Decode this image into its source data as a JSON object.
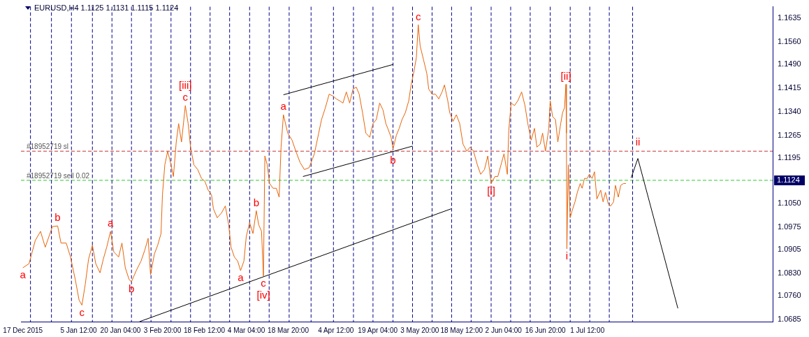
{
  "chart_data": {
    "type": "line",
    "title": "EURUSD,H4 1.1125 1.1131 1.1115 1.1124",
    "xlim": [
      "2015-12-16T08:00",
      "2016-09-04T08:00"
    ],
    "xticks": [
      {
        "value": "2015-12-17",
        "label": "17 Dec 2015"
      },
      {
        "value": "2016-01-05T12:00",
        "label": "5 Jan 12:00"
      },
      {
        "value": "2016-01-20T04:00",
        "label": "20 Jan 04:00"
      },
      {
        "value": "2016-02-03T20:00",
        "label": "3 Feb 20:00"
      },
      {
        "value": "2016-02-18T12:00",
        "label": "18 Feb 12:00"
      },
      {
        "value": "2016-03-04T04:00",
        "label": "4 Mar 04:00"
      },
      {
        "value": "2016-03-18T20:00",
        "label": "18 Mar 20:00"
      },
      {
        "value": "2016-04-04T12:00",
        "label": "4 Apr 12:00"
      },
      {
        "value": "2016-04-19T04:00",
        "label": "19 Apr 04:00"
      },
      {
        "value": "2016-05-03T20:00",
        "label": "3 May 20:00"
      },
      {
        "value": "2016-05-18T12:00",
        "label": "18 May 12:00"
      },
      {
        "value": "2016-06-02T04:00",
        "label": "2 Jun 04:00"
      },
      {
        "value": "2016-06-16T20:00",
        "label": "16 Jun 20:00"
      },
      {
        "value": "2016-07-01T12:00",
        "label": "1 Jul 12:00"
      }
    ],
    "ylim": [
      1.0678,
      1.1672
    ],
    "yticks": [
      1.0685,
      {
        "value": 1.076,
        "label": "1.0760"
      },
      {
        "value": 1.083,
        "label": "1.0830"
      },
      1.0905,
      1.0975,
      {
        "value": 1.105,
        "label": "1.1050"
      },
      1.1124,
      1.1195,
      1.1265,
      {
        "value": 1.134,
        "label": "1.1340"
      },
      1.1415,
      {
        "value": 1.149,
        "label": "1.1490"
      },
      {
        "value": 1.156,
        "label": "1.1560"
      },
      1.1635
    ],
    "grid": false,
    "marker": "none",
    "series": [
      {
        "x": [
          "2015-12-17T00:00",
          "2015-12-19T04:00",
          "2015-12-21T08:00",
          "2015-12-23T04:00",
          "2015-12-24T20:00",
          "2015-12-27T08:00",
          "2015-12-29T04:00",
          "2015-12-30T08:00",
          "2016-01-01T04:00",
          "2016-01-02T16:00",
          "2016-01-04T08:00",
          "2016-01-05T16:00",
          "2016-01-06T16:00",
          "2016-01-07T20:00",
          "2016-01-09T00:00",
          "2016-01-10T08:00",
          "2016-01-11T12:00",
          "2016-01-13T00:00",
          "2016-01-14T04:00",
          "2016-01-15T08:00",
          "2016-01-16T16:00",
          "2016-01-17T20:00",
          "2016-01-19T12:00",
          "2016-01-20T16:00",
          "2016-01-21T20:00",
          "2016-01-23T04:00",
          "2016-01-24T00:00",
          "2016-01-25T16:00",
          "2016-01-27T08:00",
          "2016-01-28T16:00",
          "2016-01-29T20:00",
          "2016-01-30T16:00",
          "2016-02-01T00:00",
          "2016-02-02T04:00",
          "2016-02-03T08:00",
          "2016-02-03T20:00",
          "2016-02-04T16:00",
          "2016-02-05T16:00",
          "2016-02-06T20:00",
          "2016-02-07T16:00",
          "2016-02-08T16:00",
          "2016-02-09T12:00",
          "2016-02-10T12:00",
          "2016-02-11T08:00",
          "2016-02-11T20:00",
          "2016-02-12T20:00",
          "2016-02-13T16:00",
          "2016-02-14T20:00",
          "2016-02-16T04:00",
          "2016-02-17T12:00",
          "2016-02-18T16:00",
          "2016-02-19T20:00",
          "2016-02-21T00:00",
          "2016-02-21T16:00",
          "2016-02-23T00:00",
          "2016-02-24T12:00",
          "2016-02-25T20:00",
          "2016-02-27T00:00",
          "2016-02-27T20:00",
          "2016-02-29T00:00",
          "2016-03-01T04:00",
          "2016-03-02T04:00",
          "2016-03-03T08:00",
          "2016-03-04T04:00",
          "2016-03-05T08:00",
          "2016-03-06T12:00",
          "2016-03-07T16:00",
          "2016-03-08T12:00",
          "2016-03-09T12:00",
          "2016-03-10T04:00",
          "2016-03-10T16:00",
          "2016-03-11T12:00",
          "2016-03-12T08:00",
          "2016-03-13T12:00",
          "2016-03-14T16:00",
          "2016-03-15T16:00",
          "2016-03-16T08:00",
          "2016-03-17T04:00",
          "2016-03-18T16:00",
          "2016-03-20T04:00",
          "2016-03-21T12:00",
          "2016-03-23T00:00",
          "2016-03-24T12:00",
          "2016-03-26T04:00",
          "2016-03-28T00:00",
          "2016-03-29T12:00",
          "2016-03-30T12:00",
          "2016-03-31T20:00",
          "2016-04-02T04:00",
          "2016-04-03T12:00",
          "2016-04-04T16:00",
          "2016-04-05T20:00",
          "2016-04-07T00:00",
          "2016-04-08T04:00",
          "2016-04-09T08:00",
          "2016-04-10T12:00",
          "2016-04-11T16:00",
          "2016-04-12T16:00",
          "2016-04-13T20:00",
          "2016-04-15T00:00",
          "2016-04-16T08:00",
          "2016-04-17T12:00",
          "2016-04-18T16:00",
          "2016-04-19T20:00",
          "2016-04-21T00:00",
          "2016-04-22T00:00",
          "2016-04-22T16:00",
          "2016-04-23T20:00",
          "2016-04-24T12:00",
          "2016-04-25T16:00",
          "2016-04-26T16:00",
          "2016-04-27T16:00",
          "2016-04-28T20:00",
          "2016-04-30T00:00",
          "2016-04-30T20:00",
          "2016-05-01T20:00",
          "2016-05-02T16:00",
          "2016-05-03T08:00",
          "2016-05-04T00:00",
          "2016-05-05T04:00",
          "2016-05-06T08:00",
          "2016-05-07T00:00",
          "2016-05-08T04:00",
          "2016-05-09T08:00",
          "2016-05-10T12:00",
          "2016-05-11T16:00",
          "2016-05-12T12:00",
          "2016-05-13T16:00",
          "2016-05-14T08:00",
          "2016-05-15T12:00",
          "2016-05-16T16:00",
          "2016-05-17T20:00",
          "2016-05-19T00:00",
          "2016-05-20T08:00",
          "2016-05-21T12:00",
          "2016-05-22T16:00",
          "2016-05-24T00:00",
          "2016-05-25T04:00",
          "2016-05-26T12:00",
          "2016-05-27T16:00",
          "2016-05-28T20:00",
          "2016-05-30T04:00",
          "2016-05-31T04:00",
          "2016-06-01T12:00",
          "2016-06-02T08:00",
          "2016-06-03T12:00",
          "2016-06-04T00:00",
          "2016-06-04T20:00",
          "2016-06-06T00:00",
          "2016-06-07T04:00",
          "2016-06-08T12:00",
          "2016-06-09T16:00",
          "2016-06-10T16:00",
          "2016-06-11T20:00",
          "2016-06-13T00:00",
          "2016-06-13T20:00",
          "2016-06-15T00:00",
          "2016-06-15T20:00",
          "2016-06-16T20:00",
          "2016-06-17T16:00",
          "2016-06-18T00:00",
          "2016-06-18T12:00",
          "2016-06-19T08:00",
          "2016-06-20T08:00",
          "2016-06-21T04:00",
          "2016-06-22T04:00",
          "2016-06-22T20:00",
          "2016-06-23T12:00",
          "2016-06-24T00:00",
          "2016-06-24T04:00",
          "2016-06-24T08:00",
          "2016-06-24T20:00",
          "2016-06-25T12:00",
          "2016-06-26T04:00",
          "2016-06-27T04:00",
          "2016-06-28T00:00",
          "2016-06-29T00:00",
          "2016-06-29T16:00",
          "2016-06-30T12:00",
          "2016-07-01T12:00",
          "2016-07-02T04:00",
          "2016-07-03T04:00",
          "2016-07-04T00:00",
          "2016-07-04T20:00",
          "2016-07-06T04:00",
          "2016-07-07T00:00",
          "2016-07-07T20:00",
          "2016-07-08T20:00",
          "2016-07-09T16:00",
          "2016-07-10T16:00",
          "2016-07-11T08:00",
          "2016-07-12T08:00",
          "2016-07-13T04:00",
          "2016-07-14T04:00",
          "2016-07-15T00:00"
        ],
        "values": [
          1.0848,
          1.0861,
          1.0934,
          1.0963,
          1.0913,
          1.0978,
          1.098,
          1.0926,
          1.0926,
          1.0882,
          1.0811,
          1.0746,
          1.073,
          1.0796,
          1.0876,
          1.0919,
          1.0861,
          1.0832,
          1.0876,
          1.0913,
          1.0963,
          1.0898,
          1.0882,
          1.0926,
          1.0848,
          1.0811,
          1.0804,
          1.0839,
          1.0869,
          1.0904,
          1.0941,
          1.0826,
          1.0891,
          1.0919,
          1.0956,
          1.1078,
          1.1173,
          1.1216,
          1.1173,
          1.1136,
          1.1245,
          1.1303,
          1.1245,
          1.1316,
          1.136,
          1.1303,
          1.1229,
          1.1173,
          1.1158,
          1.113,
          1.1121,
          1.1093,
          1.1078,
          1.1034,
          1.1006,
          1.1021,
          1.1043,
          1.0984,
          1.0913,
          1.0882,
          1.0869,
          1.0839,
          1.0869,
          1.0947,
          1.0991,
          1.0956,
          1.1028,
          1.0984,
          1.0963,
          1.0822,
          1.1201,
          1.1173,
          1.1114,
          1.1099,
          1.1099,
          1.1071,
          1.1229,
          1.1331,
          1.1273,
          1.1251,
          1.1216,
          1.118,
          1.1158,
          1.1164,
          1.1208,
          1.1273,
          1.1316,
          1.1353,
          1.1396,
          1.139,
          1.1381,
          1.1375,
          1.1368,
          1.1403,
          1.1368,
          1.1412,
          1.1418,
          1.1396,
          1.1338,
          1.1273,
          1.126,
          1.1303,
          1.1316,
          1.1368,
          1.1346,
          1.1303,
          1.1288,
          1.126,
          1.1223,
          1.1266,
          1.1288,
          1.1316,
          1.1338,
          1.1375,
          1.1425,
          1.1468,
          1.1511,
          1.1615,
          1.1548,
          1.1505,
          1.1461,
          1.1412,
          1.1396,
          1.1396,
          1.1381,
          1.1403,
          1.1425,
          1.1375,
          1.1338,
          1.131,
          1.1331,
          1.1303,
          1.1238,
          1.1216,
          1.1229,
          1.1216,
          1.1173,
          1.1143,
          1.1158,
          1.1201,
          1.1114,
          1.1136,
          1.1136,
          1.118,
          1.1208,
          1.1143,
          1.1281,
          1.1368,
          1.136,
          1.1375,
          1.1403,
          1.136,
          1.1303,
          1.1251,
          1.1288,
          1.1229,
          1.1238,
          1.1273,
          1.1216,
          1.1266,
          1.1288,
          1.1375,
          1.1325,
          1.1316,
          1.1245,
          1.1303,
          1.1338,
          1.1353,
          1.1427,
          1.1273,
          1.0908,
          1.1173,
          1.1006,
          1.1028,
          1.1056,
          1.1086,
          1.1114,
          1.1099,
          1.113,
          1.113,
          1.1143,
          1.113,
          1.1151,
          1.1065,
          1.1093,
          1.1056,
          1.1086,
          1.1049,
          1.1043,
          1.1056,
          1.1108,
          1.1071,
          1.1108,
          1.1114,
          1.1114
        ],
        "color": "#e8650a"
      },
      {
        "x": [
          "2016-03-17T04:00",
          "2016-04-24T16:00"
        ],
        "values": [
          1.1394,
          1.149
        ],
        "color": "#000000"
      },
      {
        "x": [
          "2016-03-24T00:00",
          "2016-05-01T08:00"
        ],
        "values": [
          1.1136,
          1.1232
        ],
        "color": "#000000"
      },
      {
        "x": [
          "2016-01-26T20:00",
          "2016-05-14T20:00"
        ],
        "values": [
          1.0678,
          1.1034
        ],
        "color": "#000000"
      },
      {
        "x": [
          "2016-07-16T20:00",
          "2016-07-19T04:00",
          "2016-08-02T04:00"
        ],
        "values": [
          1.1132,
          1.1193,
          1.072
        ],
        "color": "#000000"
      }
    ],
    "ref_lines": [
      {
        "axis": "y",
        "value": 1.1216,
        "label": "#18952719 sl",
        "color": "#c83232",
        "line_style": "dashed"
      },
      {
        "axis": "y",
        "value": 1.1124,
        "label": "#18952719 sell 0.02",
        "color": "#32c832",
        "line_style": "dashed"
      },
      {
        "axis": "x",
        "value": "2015-12-19T16:00",
        "color": "#00008b",
        "line_style": "dashed"
      },
      {
        "axis": "x",
        "value": "2015-12-27T00:00",
        "color": "#00008b",
        "line_style": "dashed"
      },
      {
        "axis": "x",
        "value": "2016-01-03T00:00",
        "color": "#00008b",
        "line_style": "dashed"
      },
      {
        "axis": "x",
        "value": "2016-01-10T08:00",
        "color": "#00008b",
        "line_style": "dashed"
      },
      {
        "axis": "x",
        "value": "2016-01-17T04:00",
        "color": "#00008b",
        "line_style": "dashed"
      },
      {
        "axis": "x",
        "value": "2016-01-24T00:00",
        "color": "#00008b",
        "line_style": "dashed"
      },
      {
        "axis": "x",
        "value": "2016-01-30T20:00",
        "color": "#00008b",
        "line_style": "dashed"
      },
      {
        "axis": "x",
        "value": "2016-02-06T20:00",
        "color": "#00008b",
        "line_style": "dashed"
      },
      {
        "axis": "x",
        "value": "2016-02-13T16:00",
        "color": "#00008b",
        "line_style": "dashed"
      },
      {
        "axis": "x",
        "value": "2016-02-20T12:00",
        "color": "#00008b",
        "line_style": "dashed"
      },
      {
        "axis": "x",
        "value": "2016-02-27T08:00",
        "color": "#00008b",
        "line_style": "dashed"
      },
      {
        "axis": "x",
        "value": "2016-03-05T08:00",
        "color": "#00008b",
        "line_style": "dashed"
      },
      {
        "axis": "x",
        "value": "2016-03-12T04:00",
        "color": "#00008b",
        "line_style": "dashed"
      },
      {
        "axis": "x",
        "value": "2016-03-19T04:00",
        "color": "#00008b",
        "line_style": "dashed"
      },
      {
        "axis": "x",
        "value": "2016-03-26T20:00",
        "color": "#00008b",
        "line_style": "dashed"
      },
      {
        "axis": "x",
        "value": "2016-04-03T16:00",
        "color": "#00008b",
        "line_style": "dashed"
      },
      {
        "axis": "x",
        "value": "2016-04-10T16:00",
        "color": "#00008b",
        "line_style": "dashed"
      },
      {
        "axis": "x",
        "value": "2016-04-17T12:00",
        "color": "#00008b",
        "line_style": "dashed"
      },
      {
        "axis": "x",
        "value": "2016-04-24T12:00",
        "color": "#00008b",
        "line_style": "dashed"
      },
      {
        "axis": "x",
        "value": "2016-05-01T08:00",
        "color": "#00008b",
        "line_style": "dashed"
      },
      {
        "axis": "x",
        "value": "2016-05-08T04:00",
        "color": "#00008b",
        "line_style": "dashed"
      },
      {
        "axis": "x",
        "value": "2016-05-15T00:00",
        "color": "#00008b",
        "line_style": "dashed"
      },
      {
        "axis": "x",
        "value": "2016-05-21T20:00",
        "color": "#00008b",
        "line_style": "dashed"
      },
      {
        "axis": "x",
        "value": "2016-05-28T20:00",
        "color": "#00008b",
        "line_style": "dashed"
      },
      {
        "axis": "x",
        "value": "2016-06-04T16:00",
        "color": "#00008b",
        "line_style": "dashed"
      },
      {
        "axis": "x",
        "value": "2016-06-11T12:00",
        "color": "#00008b",
        "line_style": "dashed"
      },
      {
        "axis": "x",
        "value": "2016-06-18T12:00",
        "color": "#00008b",
        "line_style": "dashed"
      },
      {
        "axis": "x",
        "value": "2016-06-25T12:00",
        "color": "#00008b",
        "line_style": "dashed"
      },
      {
        "axis": "x",
        "value": "2016-07-02T08:00",
        "color": "#00008b",
        "line_style": "dashed"
      },
      {
        "axis": "x",
        "value": "2016-07-09T04:00",
        "color": "#00008b",
        "line_style": "dashed"
      },
      {
        "axis": "x",
        "value": "2016-07-17T08:00",
        "color": "#00008b",
        "line_style": "dashed"
      }
    ],
    "annotations": [
      {
        "text": "a",
        "x": "2015-12-17T00:00",
        "y": 1.0848
      },
      {
        "text": "b",
        "x": "2015-12-29T04:00",
        "y": 1.098
      },
      {
        "text": "c",
        "x": "2016-01-06T16:00",
        "y": 1.073
      },
      {
        "text": "a",
        "x": "2016-01-16T16:00",
        "y": 1.0963
      },
      {
        "text": "b",
        "x": "2016-01-24T00:00",
        "y": 1.0804
      },
      {
        "text": "c",
        "x": "2016-02-11T20:00",
        "y": 1.136
      },
      {
        "text": "[iii]",
        "x": "2016-02-11T20:00",
        "y": 1.136
      },
      {
        "text": "a",
        "x": "2016-03-02T04:00",
        "y": 1.0839
      },
      {
        "text": "b",
        "x": "2016-03-07T16:00",
        "y": 1.1028
      },
      {
        "text": "c",
        "x": "2016-03-10T04:00",
        "y": 1.0822
      },
      {
        "text": "[iv]",
        "x": "2016-03-10T04:00",
        "y": 1.0822
      },
      {
        "text": "a",
        "x": "2016-03-17T04:00",
        "y": 1.1331
      },
      {
        "text": "b",
        "x": "2016-04-24T12:00",
        "y": 1.1223
      },
      {
        "text": "c",
        "x": "2016-05-03T08:00",
        "y": 1.1615
      },
      {
        "text": "[i]",
        "x": "2016-05-28T20:00",
        "y": 1.1114
      },
      {
        "text": "[ii]",
        "x": "2016-06-24T00:00",
        "y": 1.1427
      },
      {
        "text": "i",
        "x": "2016-06-24T08:00",
        "y": 1.0908
      },
      {
        "text": "ii",
        "x": "2016-07-19T04:00",
        "y": 1.1193
      }
    ]
  }
}
